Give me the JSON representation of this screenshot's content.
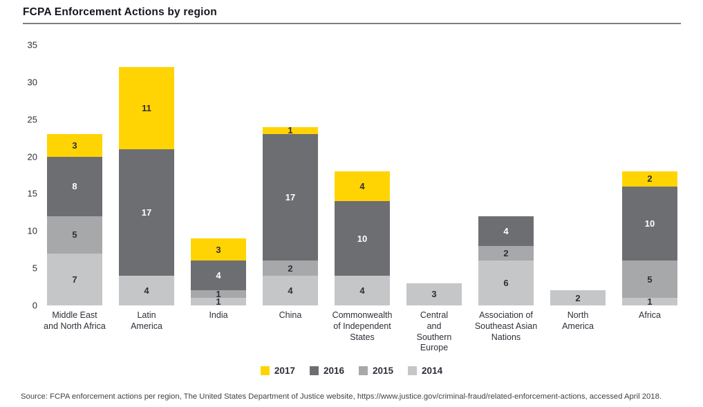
{
  "page": {
    "title": "FCPA Enforcement Actions by region",
    "source": "Source: FCPA enforcement actions per region, The United States Department of Justice website, https://www.justice.gov/criminal-fraud/related-enforcement-actions, accessed April 2018."
  },
  "chart_data": {
    "type": "bar",
    "stacked": true,
    "title": "FCPA Enforcement Actions by region",
    "xlabel": "",
    "ylabel": "",
    "ylim": [
      0,
      35
    ],
    "yticks": [
      0,
      5,
      10,
      15,
      20,
      25,
      30,
      35
    ],
    "grid": false,
    "legend_position": "bottom",
    "categories": [
      "Middle East\nand North Africa",
      "Latin\nAmerica",
      "India",
      "China",
      "Commonwealth\nof Independent\nStates",
      "Central\nand\nSouthern\nEurope",
      "Association of\nSoutheast Asian\nNations",
      "North\nAmerica",
      "Africa"
    ],
    "series": [
      {
        "name": "2014",
        "color": "#c5c6c7",
        "label_color": "#2e2e38",
        "values": [
          7,
          4,
          1,
          4,
          4,
          3,
          6,
          2,
          1
        ]
      },
      {
        "name": "2015",
        "color": "#a6a8aa",
        "label_color": "#2e2e38",
        "values": [
          5,
          0,
          1,
          2,
          0,
          0,
          2,
          0,
          5
        ]
      },
      {
        "name": "2016",
        "color": "#6d6e71",
        "label_color": "#ffffff",
        "values": [
          8,
          17,
          4,
          17,
          10,
          0,
          4,
          0,
          10
        ]
      },
      {
        "name": "2017",
        "color": "#ffd402",
        "label_color": "#2e2e38",
        "values": [
          3,
          11,
          3,
          1,
          4,
          0,
          0,
          0,
          2
        ]
      }
    ],
    "totals": [
      23,
      32,
      9,
      24,
      18,
      3,
      12,
      2,
      18
    ],
    "legend_order": [
      "2017",
      "2016",
      "2015",
      "2014"
    ]
  }
}
